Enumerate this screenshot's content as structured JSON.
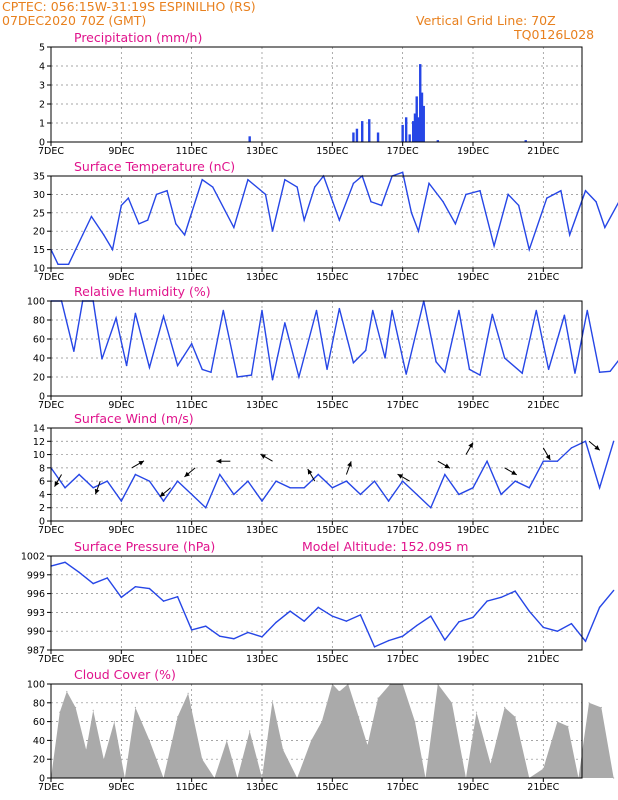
{
  "header": {
    "line1": "CPTEC:   056:15W-31:19S   ESPINILHO (RS)",
    "line2": "07DEC2020  70Z  (GMT)",
    "right1": "Vertical Grid Line: 70Z",
    "right2": "TQ0126L028"
  },
  "colors": {
    "header": "#e8801e",
    "title": "#e0138c",
    "line": "#2646e6",
    "bar": "#2646e6",
    "cloud": "#aaaaaa",
    "arrow": "#000000"
  },
  "x_tick_labels": [
    "7DEC",
    "9DEC",
    "11DEC",
    "13DEC",
    "15DEC",
    "17DEC",
    "19DEC",
    "21DEC"
  ],
  "chart_data": [
    {
      "id": "precip",
      "type": "bar",
      "title": "Precipitation  (mm/h)",
      "ylim": [
        0,
        5
      ],
      "yticks": [
        0,
        1,
        2,
        3,
        4,
        5
      ],
      "x_days": [
        5.65,
        8.6,
        8.7,
        8.85,
        9.05,
        9.3,
        10.0,
        10.1,
        10.2,
        10.3,
        10.35,
        10.4,
        10.45,
        10.5,
        10.55,
        10.6,
        11.0,
        13.5
      ],
      "values": [
        0.3,
        0.5,
        0.7,
        1.1,
        1.2,
        0.5,
        0.9,
        1.3,
        0.4,
        1.1,
        1.5,
        2.4,
        1.3,
        4.1,
        2.6,
        1.9,
        0.1,
        0.1
      ]
    },
    {
      "id": "temp",
      "type": "line",
      "title": "Surface Temperature (nC)",
      "ylim": [
        10,
        35
      ],
      "yticks": [
        10,
        15,
        20,
        25,
        30,
        35
      ],
      "x_days": [
        0,
        0.2,
        0.5,
        0.9,
        1.15,
        1.5,
        1.75,
        2.0,
        2.2,
        2.5,
        2.75,
        3.0,
        3.3,
        3.55,
        3.8,
        4.3,
        4.6,
        5.2,
        5.6,
        6.1,
        6.3,
        6.65,
        7.0,
        7.2,
        7.5,
        7.75,
        8.2,
        8.6,
        8.85,
        9.1,
        9.4,
        9.7,
        10.0,
        10.25,
        10.45,
        10.75,
        11.15,
        11.5,
        11.8,
        12.2,
        12.6,
        13.0,
        13.3,
        13.6,
        14.1,
        14.5,
        14.75,
        15.2,
        15.5,
        15.75,
        16.15
      ],
      "values": [
        15,
        11,
        11,
        19,
        24,
        19,
        15,
        27,
        29,
        22,
        23,
        30,
        31,
        22,
        19,
        34,
        32,
        21,
        34,
        30,
        20,
        34,
        32,
        23,
        32,
        35,
        23,
        33,
        35,
        28,
        27,
        35,
        36,
        25,
        20,
        33,
        28,
        22,
        30,
        31,
        16,
        30,
        27,
        15,
        29,
        31,
        19,
        31,
        28,
        21,
        28
      ]
    },
    {
      "id": "rh",
      "type": "line",
      "title": "Relative Humidity (%)",
      "ylim": [
        0,
        100
      ],
      "yticks": [
        0,
        20,
        40,
        60,
        80,
        100
      ],
      "x_days": [
        0,
        0.3,
        0.65,
        0.9,
        1.2,
        1.45,
        1.85,
        2.15,
        2.4,
        2.8,
        3.2,
        3.6,
        4.0,
        4.3,
        4.55,
        4.9,
        5.3,
        5.7,
        6.0,
        6.3,
        6.65,
        7.05,
        7.55,
        7.85,
        8.2,
        8.6,
        8.95,
        9.15,
        9.5,
        9.7,
        10.1,
        10.6,
        10.95,
        11.2,
        11.6,
        11.9,
        12.2,
        12.55,
        12.9,
        13.4,
        13.8,
        14.15,
        14.6,
        14.9,
        15.25,
        15.6,
        15.9,
        16.15
      ],
      "values": [
        100,
        100,
        47,
        100,
        100,
        39,
        82,
        32,
        87,
        30,
        84,
        32,
        55,
        28,
        25,
        90,
        20,
        22,
        90,
        17,
        77,
        20,
        90,
        28,
        92,
        35,
        48,
        90,
        40,
        90,
        23,
        100,
        36,
        25,
        90,
        28,
        22,
        86,
        40,
        24,
        90,
        28,
        85,
        24,
        90,
        25,
        26,
        38
      ]
    },
    {
      "id": "wind",
      "type": "line",
      "title": "Surface Wind (m/s)",
      "ylim": [
        0,
        14
      ],
      "yticks": [
        0,
        2,
        4,
        6,
        8,
        10,
        12,
        14
      ],
      "x_days": [
        0,
        0.4,
        0.8,
        1.2,
        1.6,
        2.0,
        2.4,
        2.8,
        3.2,
        3.6,
        4.0,
        4.4,
        4.8,
        5.2,
        5.6,
        6.0,
        6.4,
        6.8,
        7.2,
        7.6,
        8.0,
        8.4,
        8.8,
        9.2,
        9.6,
        10.0,
        10.4,
        10.8,
        11.2,
        11.6,
        12.0,
        12.4,
        12.8,
        13.2,
        13.6,
        14.0,
        14.4,
        14.8,
        15.2,
        15.6,
        16.0
      ],
      "values": [
        8,
        5,
        7,
        5,
        6,
        3,
        7,
        6,
        3,
        6,
        4,
        2,
        7,
        4,
        6,
        3,
        6,
        5,
        5,
        7,
        5,
        6,
        4,
        6,
        3,
        6,
        4,
        2,
        7,
        4,
        5,
        9,
        4,
        6,
        5,
        9,
        9,
        11,
        12,
        5,
        12
      ],
      "arrows": [
        {
          "day": 0.3,
          "mag": 7,
          "dir": 210
        },
        {
          "day": 1.4,
          "mag": 6,
          "dir": 200
        },
        {
          "day": 2.3,
          "mag": 8,
          "dir": 60
        },
        {
          "day": 3.4,
          "mag": 5,
          "dir": 230
        },
        {
          "day": 4.1,
          "mag": 8,
          "dir": 230
        },
        {
          "day": 5.1,
          "mag": 9,
          "dir": 270
        },
        {
          "day": 6.3,
          "mag": 9,
          "dir": 300
        },
        {
          "day": 7.5,
          "mag": 6,
          "dir": 330
        },
        {
          "day": 8.4,
          "mag": 7,
          "dir": 20
        },
        {
          "day": 10.2,
          "mag": 6,
          "dir": 300
        },
        {
          "day": 11.0,
          "mag": 9,
          "dir": 120
        },
        {
          "day": 11.8,
          "mag": 10,
          "dir": 30
        },
        {
          "day": 12.9,
          "mag": 8,
          "dir": 120
        },
        {
          "day": 14.0,
          "mag": 11,
          "dir": 150
        },
        {
          "day": 15.3,
          "mag": 12,
          "dir": 130
        }
      ]
    },
    {
      "id": "pres",
      "type": "line",
      "title": "Surface Pressure (hPa)",
      "subtitle": "Model Altitude: 152.095 m",
      "ylim": [
        987,
        1002
      ],
      "yticks": [
        987,
        990,
        993,
        996,
        999,
        1002
      ],
      "ytick_labels": [
        "987",
        "990",
        "993",
        "996",
        "999",
        "1002"
      ],
      "x_days": [
        0,
        0.4,
        0.8,
        1.2,
        1.6,
        2.0,
        2.4,
        2.8,
        3.2,
        3.6,
        4.0,
        4.4,
        4.8,
        5.2,
        5.6,
        6.0,
        6.4,
        6.8,
        7.2,
        7.6,
        8.0,
        8.4,
        8.8,
        9.2,
        9.6,
        10.0,
        10.4,
        10.8,
        11.2,
        11.6,
        12.0,
        12.4,
        12.8,
        13.2,
        13.6,
        14.0,
        14.4,
        14.8,
        15.2,
        15.6,
        16.0
      ],
      "values": [
        1000.4,
        1001.0,
        999.4,
        997.6,
        998.5,
        995.4,
        997.1,
        996.8,
        994.8,
        995.5,
        990.2,
        990.8,
        989.2,
        988.8,
        989.8,
        989.1,
        991.4,
        993.2,
        991.6,
        993.8,
        992.4,
        991.6,
        992.6,
        987.5,
        988.5,
        989.2,
        990.9,
        992.4,
        988.6,
        991.5,
        992.2,
        994.8,
        995.4,
        996.4,
        993.2,
        990.6,
        990.0,
        991.2,
        988.4,
        993.8,
        996.5
      ]
    },
    {
      "id": "cloud",
      "type": "area",
      "title": "Cloud Cover (%)",
      "ylim": [
        0,
        100
      ],
      "yticks": [
        0,
        20,
        40,
        60,
        80,
        100
      ],
      "x_days": [
        0,
        0.25,
        0.45,
        0.7,
        1.0,
        1.2,
        1.5,
        1.8,
        2.1,
        2.4,
        2.8,
        3.2,
        3.6,
        3.9,
        4.3,
        4.65,
        5.0,
        5.3,
        5.65,
        6.0,
        6.3,
        6.6,
        7.0,
        7.4,
        7.7,
        8.0,
        8.2,
        8.45,
        8.75,
        9.0,
        9.3,
        9.65,
        10.0,
        10.35,
        10.65,
        11.0,
        11.4,
        11.8,
        12.1,
        12.5,
        12.9,
        13.2,
        13.6,
        14.0,
        14.4,
        14.7,
        15.0,
        15.3,
        15.65,
        16.0
      ],
      "values": [
        0,
        70,
        92,
        75,
        30,
        72,
        20,
        60,
        0,
        75,
        40,
        0,
        65,
        90,
        20,
        0,
        40,
        0,
        50,
        0,
        82,
        30,
        0,
        40,
        60,
        100,
        92,
        100,
        65,
        35,
        85,
        100,
        100,
        60,
        0,
        100,
        80,
        0,
        70,
        15,
        75,
        65,
        0,
        10,
        60,
        55,
        0,
        80,
        75,
        0
      ]
    }
  ]
}
